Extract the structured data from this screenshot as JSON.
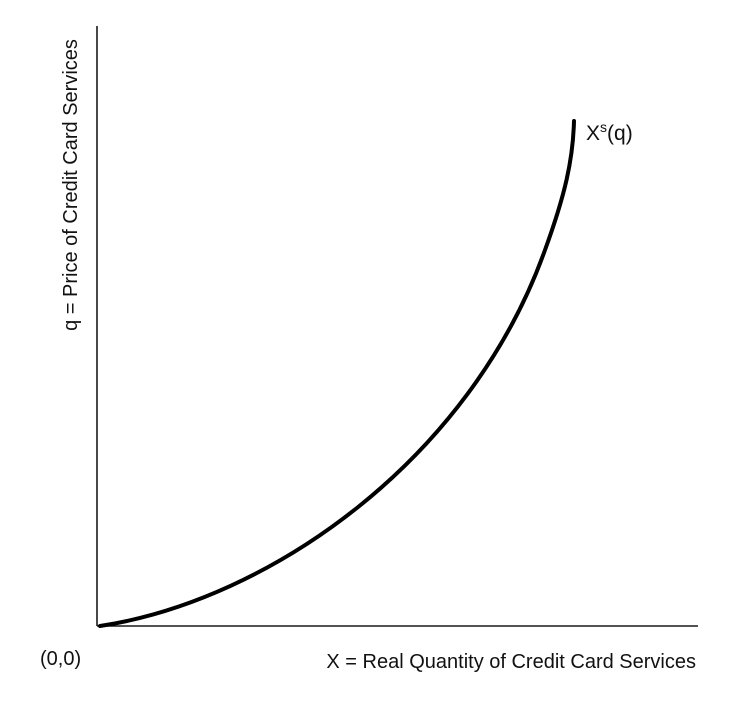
{
  "diagram": {
    "y_axis_label": "q = Price of Credit Card Services",
    "x_axis_label": "X = Real Quantity of Credit Card Services",
    "origin_label": "(0,0)",
    "curve": {
      "name": "supply-curve",
      "label_base": "X",
      "label_superscript": "s",
      "label_suffix": "(q)",
      "description": "upward-sloping convex supply curve starting at origin",
      "color": "#000000"
    }
  }
}
